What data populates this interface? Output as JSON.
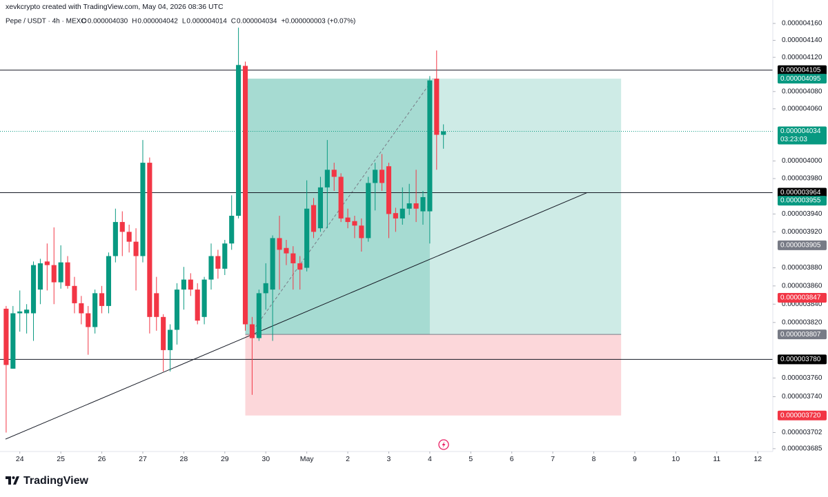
{
  "chart_data": {
    "type": "candlestick",
    "header": "xevkcrypto created with TradingView.com, May 04, 2026 08:36 UTC",
    "symbol": "Pepe / USDT · 4h · MEXC",
    "ohlc_legend": [
      {
        "key": "O",
        "value": "0.000004030"
      },
      {
        "key": "H",
        "value": "0.000004042"
      },
      {
        "key": "L",
        "value": "0.000004014"
      },
      {
        "key": "C",
        "value": "0.000004034"
      }
    ],
    "change": "+0.000000003 (+0.07%)",
    "logo": "TradingView",
    "up_color": "#089981",
    "down_color": "#f23645",
    "log_scale": true,
    "grid": false,
    "categories": [
      null,
      null,
      null,
      null,
      null,
      null,
      null,
      null,
      null,
      null,
      null,
      null,
      null,
      null,
      null,
      null,
      null,
      null,
      null,
      null,
      null,
      null,
      null,
      null,
      null,
      null,
      null,
      null,
      null,
      null,
      null,
      null,
      null,
      null,
      null,
      null,
      null,
      null,
      null,
      null,
      null,
      null,
      null,
      null,
      null,
      null,
      null,
      null,
      null,
      null,
      null,
      null,
      null,
      null,
      null,
      null,
      null,
      null,
      null,
      null,
      null,
      null,
      null,
      null,
      null
    ],
    "open": [
      3.835e-06,
      3.77e-06,
      3.83e-06,
      3.83e-06,
      3.83e-06,
      3.856e-06,
      3.887e-06,
      3.883e-06,
      3.864e-06,
      3.886e-06,
      3.86e-06,
      3.841e-06,
      3.83e-06,
      3.815e-06,
      3.852e-06,
      3.838e-06,
      3.893e-06,
      3.931e-06,
      3.92e-06,
      3.909e-06,
      3.893e-06,
      3.998e-06,
      3.852e-06,
      3.826e-06,
      3.79e-06,
      3.812e-06,
      3.856e-06,
      3.867e-06,
      3.856e-06,
      3.826e-06,
      3.867e-06,
      3.893e-06,
      3.879e-06,
      3.907e-06,
      3.938e-06,
      4.11e-06,
      3.818e-06,
      3.803e-06,
      3.852e-06,
      3.856e-06,
      3.913e-06,
      3.902e-06,
      3.896e-06,
      3.885e-06,
      3.88e-06,
      3.95e-06,
      3.924e-06,
      3.97e-06,
      3.99e-06,
      3.982e-06,
      3.936e-06,
      3.932e-06,
      3.927e-06,
      3.913e-06,
      3.975e-06,
      3.99e-06,
      3.994e-06,
      3.941e-06,
      3.935e-06,
      3.946e-06,
      3.952e-06,
      3.943e-06,
      3.943e-06,
      4.095e-06,
      4.03e-06
    ],
    "high": [
      3.838e-06,
      3.838e-06,
      3.855e-06,
      3.84e-06,
      3.887e-06,
      3.89e-06,
      3.907e-06,
      3.925e-06,
      3.905e-06,
      3.893e-06,
      3.87e-06,
      3.849e-06,
      3.838e-06,
      3.856e-06,
      3.86e-06,
      3.897e-06,
      3.946e-06,
      3.943e-06,
      3.928e-06,
      3.924e-06,
      4.024e-06,
      4.004e-06,
      3.87e-06,
      3.829e-06,
      3.818e-06,
      3.863e-06,
      3.881e-06,
      3.874e-06,
      3.863e-06,
      3.87e-06,
      3.907e-06,
      3.9e-06,
      3.911e-06,
      3.961e-06,
      4.155e-06,
      4.115e-06,
      3.826e-06,
      3.856e-06,
      3.885e-06,
      3.916e-06,
      3.938e-06,
      3.911e-06,
      3.904e-06,
      3.893e-06,
      3.978e-06,
      3.958e-06,
      3.982e-06,
      4.024e-06,
      3.998e-06,
      3.986e-06,
      3.946e-06,
      3.938e-06,
      3.935e-06,
      3.982e-06,
      3.998e-06,
      4.008e-06,
      3.998e-06,
      3.947e-06,
      3.97e-06,
      3.974e-06,
      3.99e-06,
      3.966e-06,
      4.098e-06,
      4.128e-06,
      4.042e-06
    ],
    "low": [
      3.702e-06,
      3.77e-06,
      3.81e-06,
      3.808e-06,
      3.8e-06,
      3.84e-06,
      3.855e-06,
      3.84e-06,
      3.857e-06,
      3.857e-06,
      3.83e-06,
      3.818e-06,
      3.785e-06,
      3.808e-06,
      3.83e-06,
      3.83e-06,
      3.886e-06,
      3.893e-06,
      3.897e-06,
      3.855e-06,
      3.886e-06,
      3.808e-06,
      3.811e-06,
      3.767e-06,
      3.767e-06,
      3.796e-06,
      3.834e-06,
      3.849e-06,
      3.818e-06,
      3.818e-06,
      3.856e-06,
      3.868e-06,
      3.872e-06,
      3.9e-06,
      3.935e-06,
      3.811e-06,
      3.742e-06,
      3.8e-06,
      3.834e-06,
      3.8e-06,
      3.856e-06,
      3.883e-06,
      3.856e-06,
      3.856e-06,
      3.876e-06,
      3.913e-06,
      3.92e-06,
      3.924e-06,
      3.966e-06,
      3.931e-06,
      3.924e-06,
      3.913e-06,
      3.898e-06,
      3.909e-06,
      3.944e-06,
      3.966e-06,
      3.913e-06,
      3.92e-06,
      3.928e-06,
      3.939e-06,
      3.931e-06,
      3.928e-06,
      3.907e-06,
      3.99e-06,
      4.014e-06
    ],
    "close": [
      3.774e-06,
      3.83e-06,
      3.832e-06,
      3.834e-06,
      3.883e-06,
      3.885e-06,
      3.883e-06,
      3.864e-06,
      3.886e-06,
      3.86e-06,
      3.841e-06,
      3.83e-06,
      3.815e-06,
      3.852e-06,
      3.838e-06,
      3.893e-06,
      3.931e-06,
      3.92e-06,
      3.909e-06,
      3.893e-06,
      3.998e-06,
      3.826e-06,
      3.826e-06,
      3.79e-06,
      3.812e-06,
      3.856e-06,
      3.867e-06,
      3.856e-06,
      3.822e-06,
      3.867e-06,
      3.893e-06,
      3.879e-06,
      3.907e-06,
      3.938e-06,
      4.111e-06,
      3.818e-06,
      3.803e-06,
      3.852e-06,
      3.863e-06,
      3.913e-06,
      3.9e-06,
      3.896e-06,
      3.885e-06,
      3.878e-06,
      3.946e-06,
      3.92e-06,
      3.97e-06,
      3.99e-06,
      3.982e-06,
      3.935e-06,
      3.931e-06,
      3.927e-06,
      3.913e-06,
      3.975e-06,
      3.99e-06,
      3.975e-06,
      3.94e-06,
      3.935e-06,
      3.946e-06,
      3.952e-06,
      3.946e-06,
      3.959e-06,
      4.093e-06,
      4.03e-06,
      4.034e-06
    ],
    "xlim": [
      -0.9,
      112.2
    ],
    "xticks": [
      {
        "value": 2,
        "label": "24"
      },
      {
        "value": 8,
        "label": "25"
      },
      {
        "value": 14,
        "label": "26"
      },
      {
        "value": 20,
        "label": "27"
      },
      {
        "value": 26,
        "label": "28"
      },
      {
        "value": 32,
        "label": "29"
      },
      {
        "value": 38,
        "label": "30"
      },
      {
        "value": 44,
        "label": "May"
      },
      {
        "value": 50,
        "label": "2"
      },
      {
        "value": 56,
        "label": "3"
      },
      {
        "value": 62,
        "label": "4"
      },
      {
        "value": 68,
        "label": "5"
      },
      {
        "value": 74,
        "label": "6"
      },
      {
        "value": 80,
        "label": "7"
      },
      {
        "value": 86,
        "label": "8"
      },
      {
        "value": 92,
        "label": "9"
      },
      {
        "value": 98,
        "label": "10"
      },
      {
        "value": 104,
        "label": "11"
      },
      {
        "value": 110,
        "label": "12"
      }
    ],
    "ylim": [
      3.682e-06,
      4.1879e-06
    ],
    "yticks": [
      {
        "value": 4.16e-06,
        "label": "0.000004160"
      },
      {
        "value": 4.14e-06,
        "label": "0.000004140"
      },
      {
        "value": 4.12e-06,
        "label": "0.000004120"
      },
      {
        "value": 4.08e-06,
        "label": "0.000004080"
      },
      {
        "value": 4.06e-06,
        "label": "0.000004060"
      },
      {
        "value": 4e-06,
        "label": "0.000004000"
      },
      {
        "value": 3.98e-06,
        "label": "0.000003980"
      },
      {
        "value": 3.94e-06,
        "label": "0.000003940"
      },
      {
        "value": 3.92e-06,
        "label": "0.000003920"
      },
      {
        "value": 3.88e-06,
        "label": "0.000003880"
      },
      {
        "value": 3.86e-06,
        "label": "0.000003860"
      },
      {
        "value": 3.84e-06,
        "label": "0.000003840"
      },
      {
        "value": 3.82e-06,
        "label": "0.000003820"
      },
      {
        "value": 3.76e-06,
        "label": "0.000003760"
      },
      {
        "value": 3.74e-06,
        "label": "0.000003740"
      },
      {
        "value": 3.702e-06,
        "label": "0.000003702"
      },
      {
        "value": 3.685e-06,
        "label": "0.000003685"
      }
    ],
    "horizontal_lines": [
      4.105e-06,
      3.964e-06,
      3.78e-06
    ],
    "trendline": {
      "x": [
        -0.1,
        85
      ],
      "y": [
        3.695e-06,
        3.964e-06
      ]
    },
    "position": {
      "x": [
        35,
        90
      ],
      "filled_until": 62,
      "entry": 3.807e-06,
      "target": 4.095e-06,
      "stop": 3.72e-06,
      "profit_color": "#089981",
      "loss_color": "#f23645"
    },
    "price_labels": [
      {
        "value": 4.105e-06,
        "label": "0.000004105",
        "color": "#000000"
      },
      {
        "value": 4.095e-06,
        "label": "0.000004095",
        "color": "#089981"
      },
      {
        "value": 4.034e-06,
        "label": "0.000004034",
        "color": "#089981",
        "countdown": "03:23:03",
        "dotted_line": true
      },
      {
        "value": 3.964e-06,
        "label": "0.000003964",
        "color": "#000000"
      },
      {
        "value": 3.955e-06,
        "label": "0.000003955",
        "color": "#089981"
      },
      {
        "value": 3.905e-06,
        "label": "0.000003905",
        "color": "#787b86"
      },
      {
        "value": 3.847e-06,
        "label": "0.000003847",
        "color": "#f23645"
      },
      {
        "value": 3.807e-06,
        "label": "0.000003807",
        "color": "#787b86"
      },
      {
        "value": 3.78e-06,
        "label": "0.000003780",
        "color": "#000000"
      },
      {
        "value": 3.72e-06,
        "label": "0.000003720",
        "color": "#f23645"
      }
    ]
  }
}
